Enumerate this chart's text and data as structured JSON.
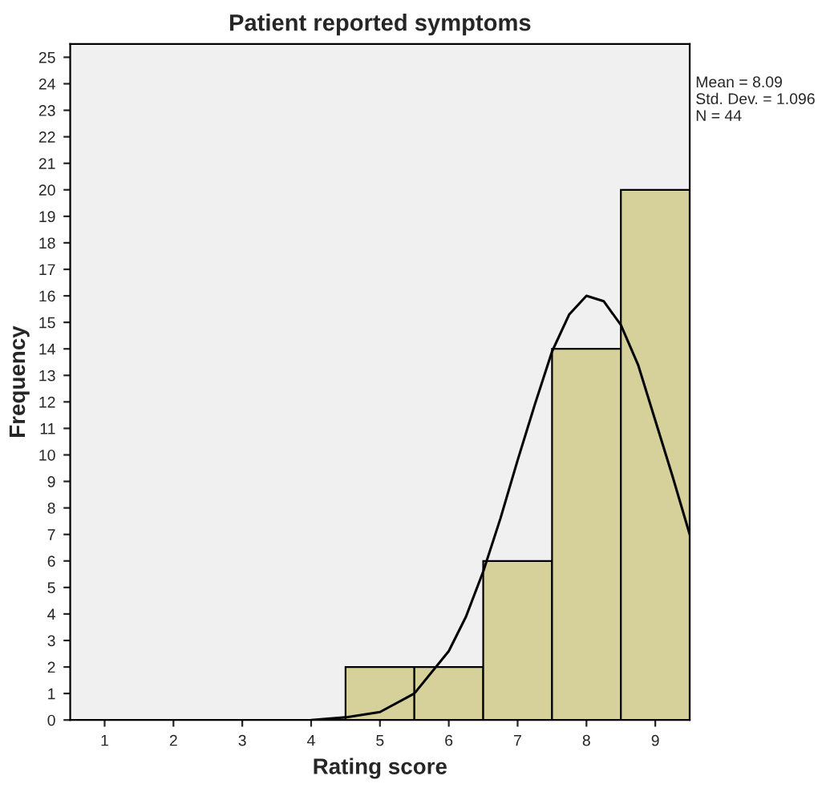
{
  "chart_data": {
    "type": "histogram",
    "title": "Patient reported symptoms",
    "xlabel": "Rating score",
    "ylabel": "Frequency",
    "bins": [
      4.5,
      5.5,
      6.5,
      7.5,
      8.5,
      9.5
    ],
    "values": [
      2,
      2,
      6,
      14,
      20
    ],
    "color": "#d6d09a",
    "series": [
      {
        "type": "line",
        "color": "#000000",
        "x": [
          4,
          4.5,
          5,
          5.5,
          6,
          6.25,
          6.5,
          6.75,
          7,
          7.25,
          7.5,
          7.75,
          8,
          8.25,
          8.5,
          8.75,
          9,
          9.25,
          9.5
        ],
        "values": [
          0.0,
          0.1,
          0.3,
          1.0,
          2.6,
          3.9,
          5.6,
          7.6,
          9.8,
          11.9,
          13.9,
          15.3,
          16.0,
          15.8,
          14.9,
          13.4,
          11.3,
          9.2,
          7.0
        ]
      }
    ],
    "xlim": [
      0.5,
      9.5
    ],
    "xticks": [
      1,
      2,
      3,
      4,
      5,
      6,
      7,
      8,
      9
    ],
    "ylim": [
      0,
      25.5
    ],
    "yticks": [
      0,
      1,
      2,
      3,
      4,
      5,
      6,
      7,
      8,
      9,
      10,
      11,
      12,
      13,
      14,
      15,
      16,
      17,
      18,
      19,
      20,
      21,
      22,
      23,
      24,
      25
    ],
    "grid": false,
    "annotations": [
      "Mean = 8.09\nStd. Dev. = 1.096\nN = 44"
    ]
  }
}
